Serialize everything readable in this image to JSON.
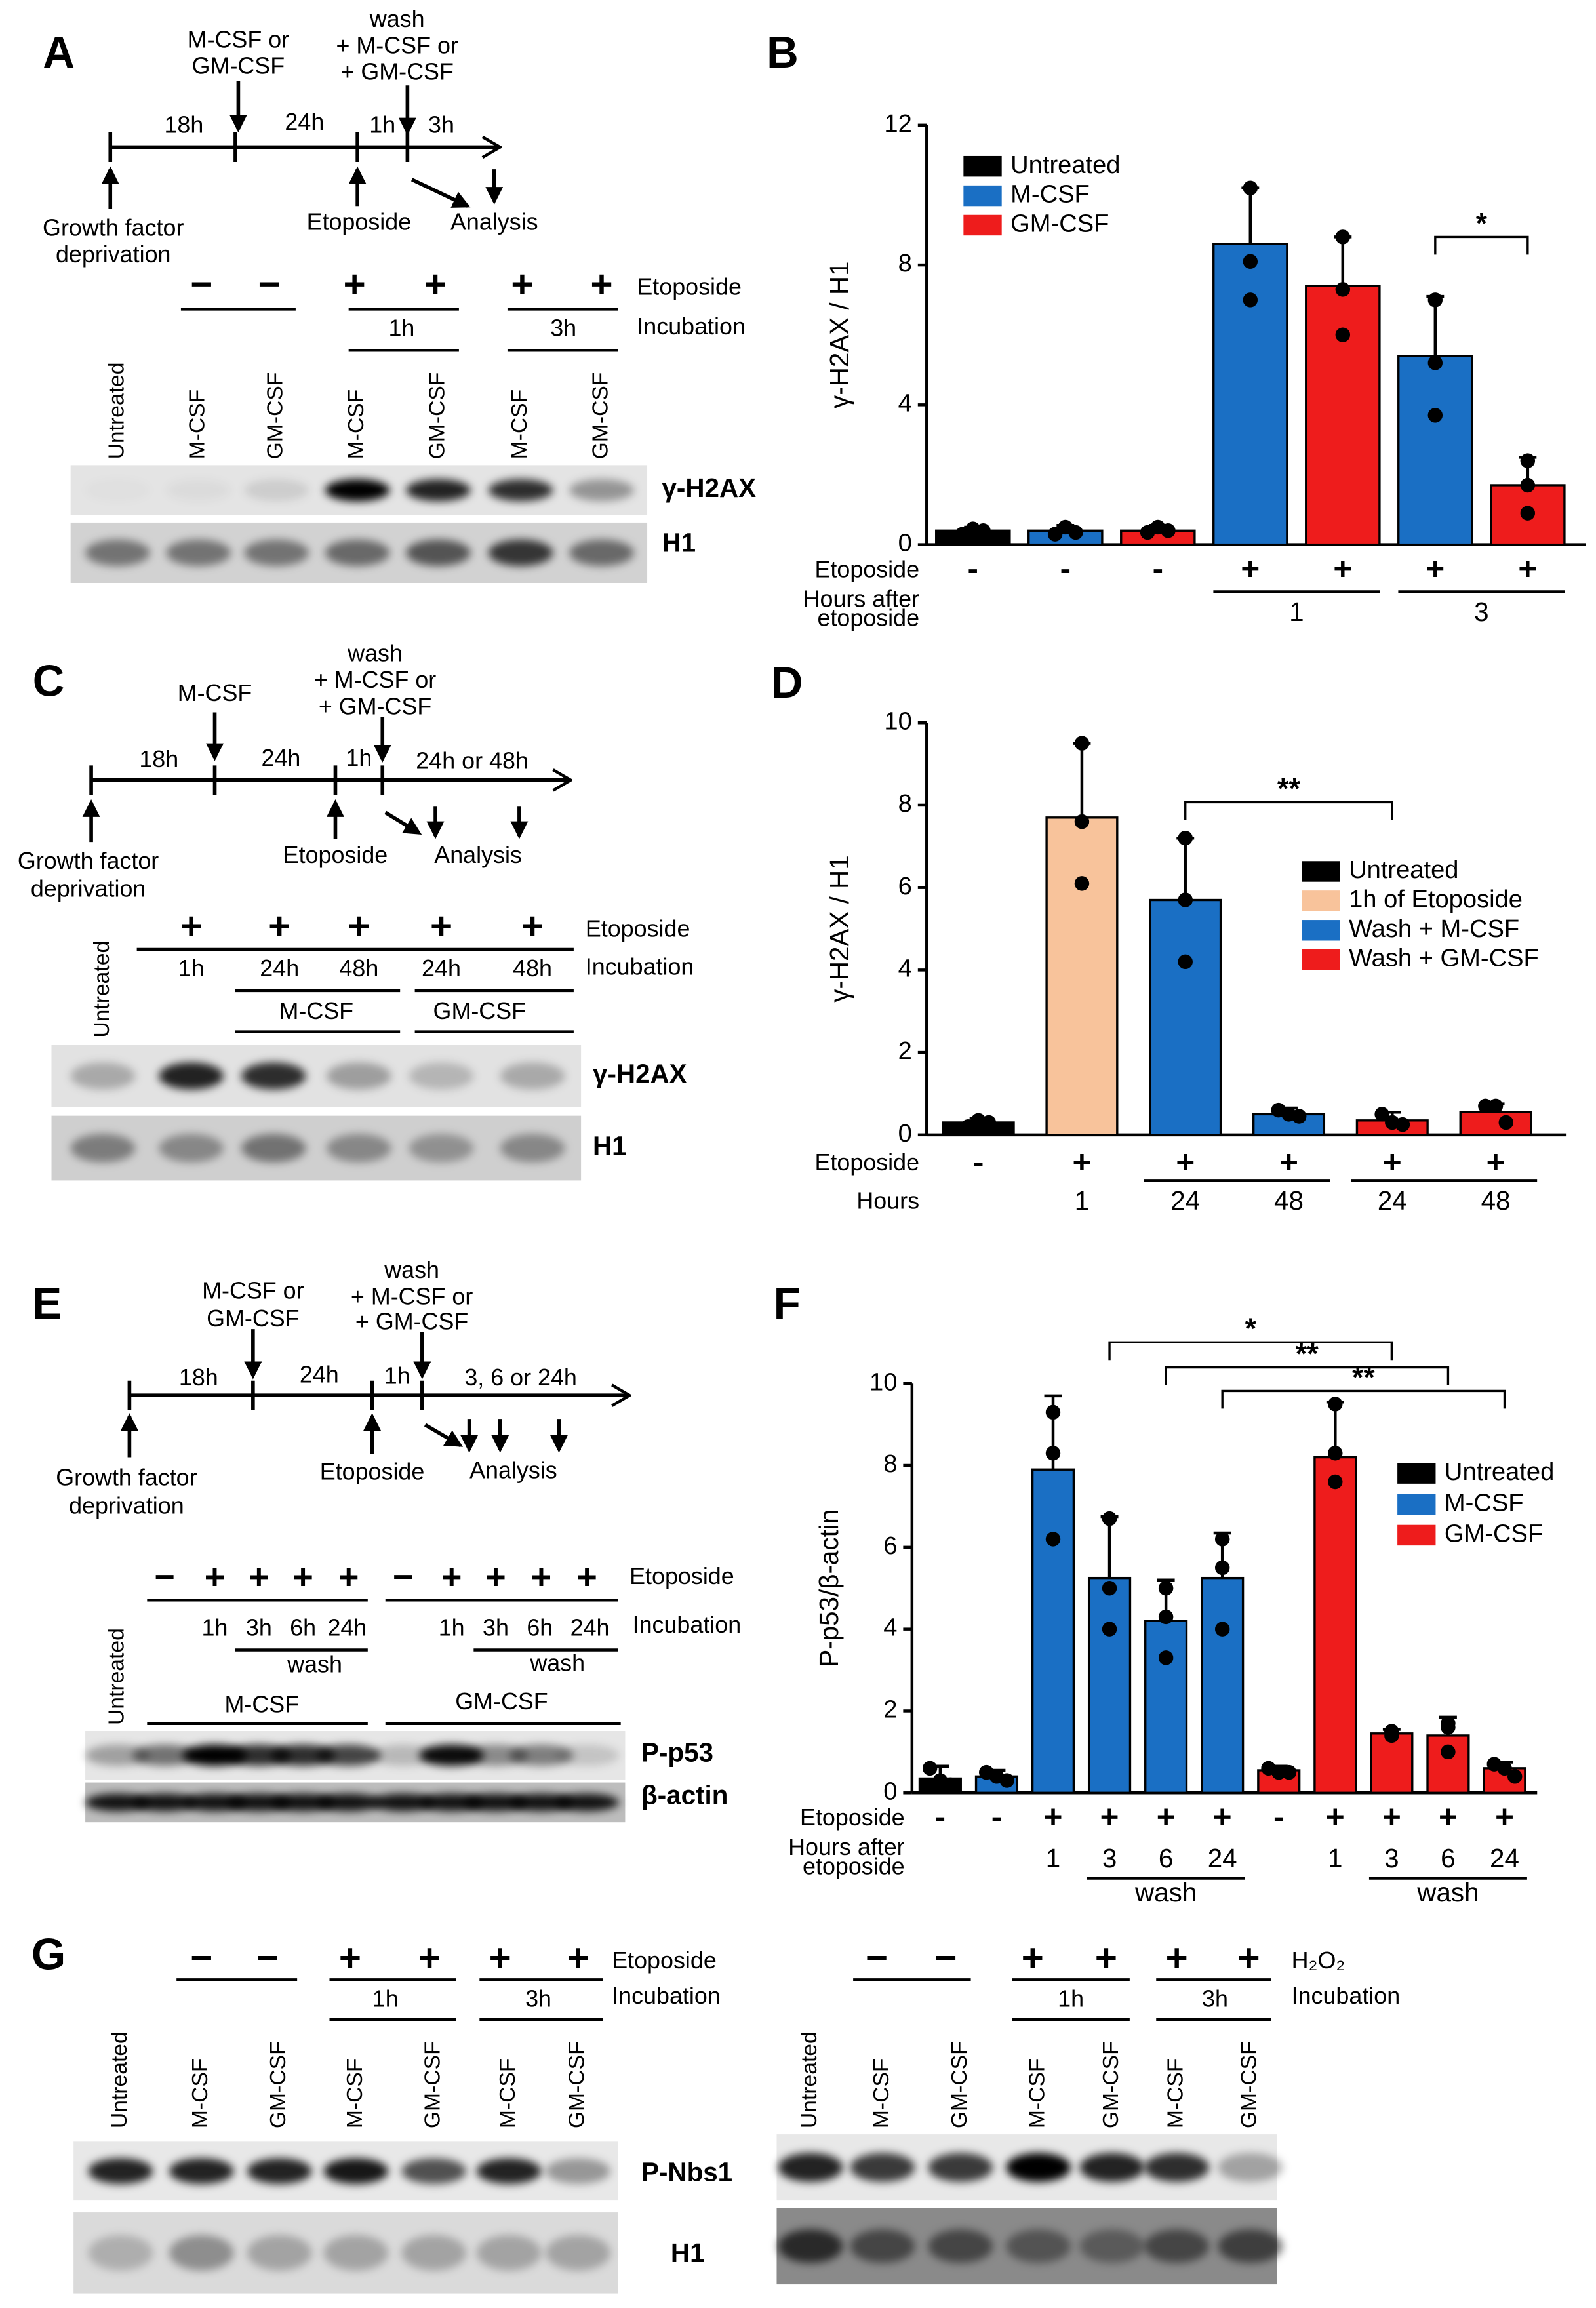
{
  "chart_data": [
    {
      "type": "bar",
      "panel": "B",
      "y_label": "γ-H2AX / H1",
      "ylim": [
        0,
        12
      ],
      "yticks": [
        0,
        4,
        8,
        12
      ],
      "values": [
        0.4,
        0.4,
        0.4,
        8.6,
        7.4,
        5.4,
        1.7
      ],
      "errors": [
        0.1,
        0.15,
        0.15,
        1.6,
        1.4,
        1.7,
        0.8
      ],
      "points": [
        [
          0.3,
          0.45,
          0.4
        ],
        [
          0.3,
          0.5,
          0.35
        ],
        [
          0.35,
          0.5,
          0.4
        ],
        [
          10.2,
          8.1,
          7.0
        ],
        [
          8.8,
          7.3,
          6.0
        ],
        [
          7.0,
          5.2,
          3.7
        ],
        [
          2.4,
          1.7,
          0.9
        ]
      ],
      "colors": [
        "#000000",
        "#1a6fc4",
        "#ee1c1c",
        "#1a6fc4",
        "#ee1c1c",
        "#1a6fc4",
        "#ee1c1c"
      ],
      "legend": [
        {
          "name": "Untreated",
          "color": "#000000"
        },
        {
          "name": "M-CSF",
          "color": "#1a6fc4"
        },
        {
          "name": "GM-CSF",
          "color": "#ee1c1c"
        }
      ],
      "row_labels": [
        "Etoposide",
        "Hours after",
        "etoposide"
      ],
      "etoposide": [
        "-",
        "-",
        "-",
        "+",
        "+",
        "+",
        "+"
      ],
      "groups": [
        {
          "label": "1",
          "bars": [
            3,
            4
          ]
        },
        {
          "label": "3",
          "bars": [
            5,
            6
          ]
        }
      ],
      "significance": [
        {
          "label": "*",
          "bars": [
            5,
            6
          ]
        }
      ]
    },
    {
      "type": "bar",
      "panel": "D",
      "y_label": "γ-H2AX / H1",
      "ylim": [
        0,
        10
      ],
      "yticks": [
        0,
        2,
        4,
        6,
        8,
        10
      ],
      "values": [
        0.3,
        7.7,
        5.7,
        0.5,
        0.35,
        0.55
      ],
      "errors": [
        0.1,
        1.8,
        1.5,
        0.15,
        0.2,
        0.2
      ],
      "points": [
        [
          0.2,
          0.35,
          0.3
        ],
        [
          9.5,
          7.6,
          6.1
        ],
        [
          7.2,
          5.7,
          4.2
        ],
        [
          0.6,
          0.5,
          0.45
        ],
        [
          0.5,
          0.3,
          0.25
        ],
        [
          0.7,
          0.7,
          0.3
        ]
      ],
      "colors": [
        "#000000",
        "#f8c39b",
        "#1a6fc4",
        "#1a6fc4",
        "#ee1c1c",
        "#ee1c1c"
      ],
      "legend": [
        {
          "name": "Untreated",
          "color": "#000000"
        },
        {
          "name": "1h of Etoposide",
          "color": "#f8c39b"
        },
        {
          "name": "Wash + M-CSF",
          "color": "#1a6fc4"
        },
        {
          "name": "Wash + GM-CSF",
          "color": "#ee1c1c"
        }
      ],
      "row_labels": [
        "Etoposide",
        "Hours"
      ],
      "etoposide": [
        "-",
        "+",
        "+",
        "+",
        "+",
        "+"
      ],
      "hours": [
        null,
        "1",
        "24",
        "48",
        "24",
        "48"
      ],
      "groups": [
        {
          "bars": [
            2,
            3
          ]
        },
        {
          "bars": [
            4,
            5
          ]
        }
      ],
      "significance": [
        {
          "label": "**",
          "bars": [
            2,
            4
          ]
        }
      ]
    },
    {
      "type": "bar",
      "panel": "F",
      "y_label": "P-p53/β-actin",
      "ylim": [
        0,
        10
      ],
      "yticks": [
        0,
        2,
        4,
        6,
        8,
        10
      ],
      "values": [
        0.35,
        0.4,
        7.9,
        5.25,
        4.2,
        5.25,
        0.55,
        8.2,
        1.45,
        1.4,
        0.6
      ],
      "errors": [
        0.3,
        0.15,
        1.8,
        1.5,
        1.0,
        1.1,
        0.1,
        1.35,
        0.1,
        0.45,
        0.15
      ],
      "points": [
        [
          0.6,
          0.3,
          0.2
        ],
        [
          0.5,
          0.4,
          0.3
        ],
        [
          9.3,
          8.3,
          6.2
        ],
        [
          6.7,
          5.0,
          4.0
        ],
        [
          5.0,
          4.3,
          3.3
        ],
        [
          6.2,
          5.5,
          4.0
        ],
        [
          0.6,
          0.5,
          0.5
        ],
        [
          9.5,
          8.3,
          7.6
        ],
        [
          1.5,
          1.5,
          1.4
        ],
        [
          1.7,
          1.6,
          1.0
        ],
        [
          0.7,
          0.6,
          0.4
        ]
      ],
      "colors": [
        "#000000",
        "#1a6fc4",
        "#1a6fc4",
        "#1a6fc4",
        "#1a6fc4",
        "#1a6fc4",
        "#ee1c1c",
        "#ee1c1c",
        "#ee1c1c",
        "#ee1c1c",
        "#ee1c1c"
      ],
      "legend": [
        {
          "name": "Untreated",
          "color": "#000000"
        },
        {
          "name": "M-CSF",
          "color": "#1a6fc4"
        },
        {
          "name": "GM-CSF",
          "color": "#ee1c1c"
        }
      ],
      "row_labels": [
        "Etoposide",
        "Hours after",
        "etoposide"
      ],
      "etoposide": [
        "-",
        "-",
        "+",
        "+",
        "+",
        "+",
        "-",
        "+",
        "+",
        "+",
        "+"
      ],
      "hours": [
        null,
        null,
        "1",
        "3",
        "6",
        "24",
        null,
        "1",
        "3",
        "6",
        "24"
      ],
      "groups": [
        {
          "label": "wash",
          "bars": [
            3,
            5
          ]
        },
        {
          "label": "wash",
          "bars": [
            8,
            10
          ]
        }
      ],
      "significance": [
        {
          "label": "*",
          "bars": [
            3,
            8
          ]
        },
        {
          "label": "**",
          "bars": [
            4,
            9
          ]
        },
        {
          "label": "**",
          "bars": [
            5,
            10
          ]
        }
      ]
    }
  ],
  "panels": {
    "A": {
      "letter": "A",
      "timeline": {
        "add": [
          "M-CSF or",
          "GM-CSF"
        ],
        "wash": [
          "wash",
          "+ M-CSF or",
          "+ GM-CSF"
        ],
        "intervals": [
          "18h",
          "24h",
          "1h",
          "3h"
        ],
        "growth_factor": [
          "Growth factor",
          "deprivation"
        ],
        "etoposide": "Etoposide",
        "analysis": "Analysis"
      },
      "blot": {
        "signs": [
          "−",
          "−",
          "+",
          "+",
          "+",
          "+"
        ],
        "etoposide": "Etoposide",
        "incubation": "Incubation",
        "times": [
          "1h",
          "3h"
        ],
        "lanes": [
          "Untreated",
          "M-CSF",
          "GM-CSF",
          "M-CSF",
          "GM-CSF",
          "M-CSF",
          "GM-CSF"
        ],
        "bands": [
          "γ-H2AX",
          "H1"
        ]
      }
    },
    "C": {
      "letter": "C",
      "timeline": {
        "add": [
          "M-CSF"
        ],
        "wash": [
          "wash",
          "+ M-CSF or",
          "+ GM-CSF"
        ],
        "intervals": [
          "18h",
          "24h",
          "1h",
          "24h or 48h"
        ],
        "growth_factor": [
          "Growth factor",
          "deprivation"
        ],
        "etoposide": "Etoposide",
        "analysis": "Analysis"
      },
      "blot": {
        "signs": [
          "+",
          "+",
          "+",
          "+",
          "+"
        ],
        "etoposide": "Etoposide",
        "incubation": "Incubation",
        "times": [
          "1h",
          "24h",
          "48h",
          "24h",
          "48h"
        ],
        "groups": [
          "M-CSF",
          "GM-CSF"
        ],
        "lanes": [
          "Untreated"
        ],
        "bands": [
          "γ-H2AX",
          "H1"
        ]
      }
    },
    "E": {
      "letter": "E",
      "timeline": {
        "add": [
          "M-CSF or",
          "GM-CSF"
        ],
        "wash": [
          "wash",
          "+ M-CSF or",
          "+ GM-CSF"
        ],
        "intervals": [
          "18h",
          "24h",
          "1h",
          "3, 6 or 24h"
        ],
        "growth_factor": [
          "Growth factor",
          "deprivation"
        ],
        "etoposide": "Etoposide",
        "analysis": "Analysis"
      },
      "blot": {
        "signs": [
          "−",
          "+",
          "+",
          "+",
          "+",
          "−",
          "+",
          "+",
          "+",
          "+"
        ],
        "etoposide": "Etoposide",
        "incubation": "Incubation",
        "times": [
          "1h",
          "3h",
          "6h",
          "24h",
          "1h",
          "3h",
          "6h",
          "24h"
        ],
        "wash": [
          "wash",
          "wash"
        ],
        "groups": [
          "M-CSF",
          "GM-CSF"
        ],
        "lanes": [
          "Untreated"
        ],
        "bands": [
          "P-p53",
          "β-actin"
        ]
      }
    },
    "G": {
      "letter": "G",
      "blots": [
        {
          "signs": [
            "−",
            "−",
            "+",
            "+",
            "+",
            "+"
          ],
          "treatment": "Etoposide",
          "incubation": "Incubation",
          "times": [
            "1h",
            "3h"
          ],
          "lanes": [
            "Untreated",
            "M-CSF",
            "GM-CSF",
            "M-CSF",
            "GM-CSF",
            "M-CSF",
            "GM-CSF"
          ],
          "bands": [
            "P-Nbs1",
            "H1"
          ]
        },
        {
          "signs": [
            "−",
            "−",
            "+",
            "+",
            "+",
            "+"
          ],
          "treatment": "H₂O₂",
          "incubation": "Incubation",
          "times": [
            "1h",
            "3h"
          ],
          "lanes": [
            "Untreated",
            "M-CSF",
            "GM-CSF",
            "M-CSF",
            "GM-CSF",
            "M-CSF",
            "GM-CSF"
          ]
        }
      ]
    }
  }
}
